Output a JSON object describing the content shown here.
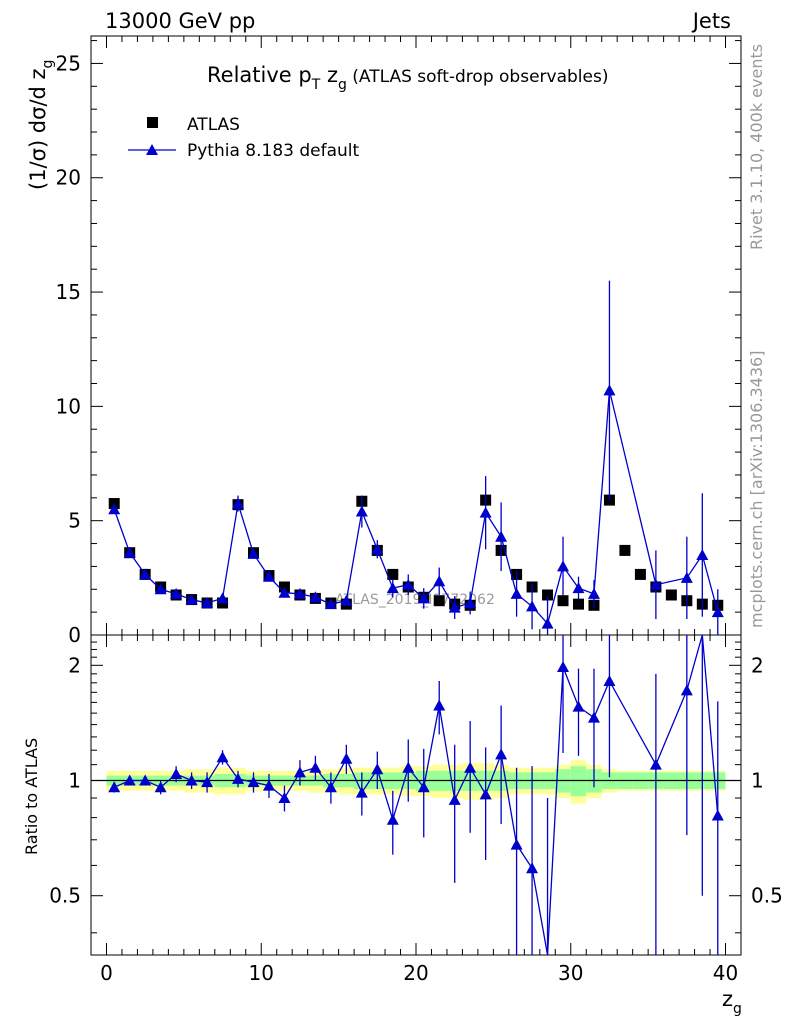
{
  "header": {
    "left": "13000 GeV pp",
    "right": "Jets",
    "side_top": "Rivet 3.1.10,  400k events",
    "side_bottom": "mcplots.cern.ch [arXiv:1306.3436]"
  },
  "chart_data": {
    "type": "scatter",
    "title": {
      "main": "Relative p",
      "sub1": "T",
      "mid": " z",
      "sub2": "g",
      "rest": " (ATLAS soft-drop observables)"
    },
    "watermark": "ATLAS_2019_I1772062",
    "xlabel": {
      "main": "z",
      "sub": "g"
    },
    "ylabel": {
      "pre": "(1/σ) dσ/d z",
      "sub": "g"
    },
    "ratio_ylabel": "Ratio to ATLAS",
    "xlim": [
      -1,
      41
    ],
    "ylim": [
      0,
      26.2
    ],
    "ratio_ylim": [
      0.35,
      2.4
    ],
    "x_ticks": [
      0,
      10,
      20,
      30,
      40
    ],
    "x_tick_labels": [
      "0",
      "10",
      "20",
      "30",
      "40"
    ],
    "y_ticks": [
      0,
      5,
      10,
      15,
      20,
      25
    ],
    "y_tick_labels": [
      "0",
      "5",
      "10",
      "15",
      "20",
      "25"
    ],
    "ratio_ticks": [
      0.5,
      1,
      2
    ],
    "ratio_tick_labels": [
      "0.5",
      "1",
      "2"
    ],
    "legend": {
      "data": "ATLAS",
      "mc": "Pythia 8.183 default",
      "position": "top-left"
    },
    "x": [
      0.5,
      1.5,
      2.5,
      3.5,
      4.5,
      5.5,
      6.5,
      7.5,
      8.5,
      9.5,
      10.5,
      11.5,
      12.5,
      13.5,
      14.5,
      15.5,
      16.5,
      17.5,
      18.5,
      19.5,
      20.5,
      21.5,
      22.5,
      23.5,
      24.5,
      25.5,
      26.5,
      27.5,
      28.5,
      29.5,
      30.5,
      31.5,
      32.5,
      33.5,
      34.5,
      35.5,
      36.5,
      37.5,
      38.5,
      39.5
    ],
    "series": [
      {
        "name": "ATLAS",
        "values": [
          5.75,
          3.6,
          2.65,
          2.1,
          1.75,
          1.55,
          1.4,
          1.4,
          5.7,
          3.6,
          2.6,
          2.1,
          1.75,
          1.6,
          1.4,
          1.35,
          5.85,
          3.7,
          2.65,
          2.1,
          1.65,
          1.5,
          1.35,
          1.3,
          5.9,
          3.7,
          2.65,
          2.1,
          1.75,
          1.5,
          1.35,
          1.3,
          5.9,
          3.7,
          2.65,
          2.1,
          1.75,
          1.5,
          1.35,
          1.3
        ]
      },
      {
        "name": "Pythia 8.183 default",
        "values": [
          5.5,
          3.6,
          2.65,
          2.0,
          1.8,
          1.55,
          1.4,
          1.6,
          5.75,
          3.55,
          2.55,
          1.85,
          1.8,
          1.65,
          1.35,
          1.5,
          5.4,
          3.75,
          2.05,
          2.2,
          1.6,
          2.35,
          1.2,
          1.4,
          5.35,
          4.3,
          1.8,
          1.25,
          0.5,
          3.0,
          2.05,
          1.8,
          10.7,
          null,
          null,
          2.2,
          null,
          2.5,
          3.5,
          1.0
        ]
      },
      {
        "name": "Pythia 8.183 default errors",
        "values": [
          0.15,
          0.1,
          0.1,
          0.08,
          0.1,
          0.08,
          0.08,
          0.15,
          0.35,
          0.2,
          0.15,
          0.15,
          0.15,
          0.15,
          0.12,
          0.2,
          0.7,
          0.4,
          0.4,
          0.45,
          0.45,
          0.6,
          0.5,
          0.5,
          1.6,
          1.5,
          1.0,
          1.0,
          1.2,
          1.3,
          0.5,
          0.6,
          4.8,
          0,
          0,
          1.5,
          0,
          1.8,
          2.7,
          1.0
        ]
      },
      {
        "name": "Ratio",
        "values": [
          0.96,
          1.0,
          1.0,
          0.96,
          1.04,
          1.0,
          0.99,
          1.15,
          1.01,
          0.99,
          0.97,
          0.9,
          1.05,
          1.08,
          0.96,
          1.14,
          0.93,
          1.07,
          0.79,
          1.08,
          0.96,
          1.57,
          0.89,
          1.08,
          0.92,
          1.17,
          0.68,
          0.59,
          0.3,
          1.98,
          1.56,
          1.46,
          1.82,
          null,
          null,
          1.1,
          null,
          1.72,
          2.5,
          0.81
        ]
      },
      {
        "name": "Ratio errors",
        "values": [
          0.03,
          0.03,
          0.03,
          0.04,
          0.05,
          0.05,
          0.06,
          0.05,
          0.05,
          0.06,
          0.07,
          0.07,
          0.08,
          0.08,
          0.09,
          0.1,
          0.12,
          0.12,
          0.15,
          0.2,
          0.25,
          0.25,
          0.35,
          0.35,
          0.3,
          0.4,
          0.4,
          0.5,
          0.6,
          0.8,
          0.4,
          0.5,
          0.8,
          0,
          0,
          0.8,
          0,
          1.0,
          2.0,
          0.8
        ]
      },
      {
        "name": "Data band inner",
        "values": [
          0.03,
          0.03,
          0.03,
          0.03,
          0.03,
          0.03,
          0.03,
          0.04,
          0.04,
          0.03,
          0.03,
          0.03,
          0.03,
          0.03,
          0.04,
          0.04,
          0.05,
          0.05,
          0.05,
          0.05,
          0.06,
          0.06,
          0.06,
          0.06,
          0.06,
          0.06,
          0.05,
          0.05,
          0.05,
          0.07,
          0.09,
          0.07,
          0.05,
          0.05,
          0.05,
          0.05,
          0.05,
          0.05,
          0.05,
          0.05
        ]
      },
      {
        "name": "Data band outer",
        "values": [
          0.06,
          0.06,
          0.06,
          0.06,
          0.06,
          0.07,
          0.07,
          0.08,
          0.08,
          0.06,
          0.06,
          0.06,
          0.06,
          0.07,
          0.07,
          0.08,
          0.08,
          0.08,
          0.08,
          0.09,
          0.09,
          0.1,
          0.1,
          0.11,
          0.11,
          0.1,
          0.08,
          0.08,
          0.08,
          0.1,
          0.13,
          0.1,
          0.07,
          0.06,
          0.06,
          0.06,
          0.06,
          0.06,
          0.06,
          0.06
        ]
      }
    ]
  }
}
